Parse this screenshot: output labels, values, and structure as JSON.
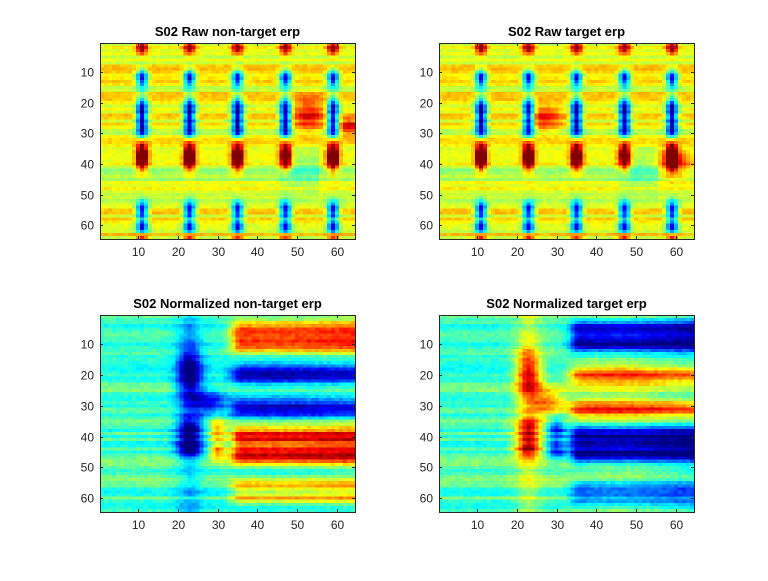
{
  "chart_data": [
    {
      "type": "heatmap",
      "title": "S02 Raw non-target erp",
      "colormap": "jet",
      "x_ticks": [
        10,
        20,
        30,
        40,
        50,
        60
      ],
      "y_ticks": [
        10,
        20,
        30,
        40,
        50,
        60
      ],
      "xlim": [
        0.5,
        64.5
      ],
      "ylim": [
        0.5,
        64.5
      ],
      "y_direction": "reverse",
      "n_cols": 64,
      "n_rows": 64,
      "value_range": [
        0,
        1
      ],
      "pattern": "raw",
      "variant": "nontarget"
    },
    {
      "type": "heatmap",
      "title": "S02 Raw target erp",
      "colormap": "jet",
      "x_ticks": [
        10,
        20,
        30,
        40,
        50,
        60
      ],
      "y_ticks": [
        10,
        20,
        30,
        40,
        50,
        60
      ],
      "xlim": [
        0.5,
        64.5
      ],
      "ylim": [
        0.5,
        64.5
      ],
      "y_direction": "reverse",
      "n_cols": 64,
      "n_rows": 64,
      "value_range": [
        0,
        1
      ],
      "pattern": "raw",
      "variant": "target"
    },
    {
      "type": "heatmap",
      "title": "S02 Normalized non-target erp",
      "colormap": "jet",
      "x_ticks": [
        10,
        20,
        30,
        40,
        50,
        60
      ],
      "y_ticks": [
        10,
        20,
        30,
        40,
        50,
        60
      ],
      "xlim": [
        0.5,
        64.5
      ],
      "ylim": [
        0.5,
        64.5
      ],
      "y_direction": "reverse",
      "n_cols": 64,
      "n_rows": 64,
      "value_range": [
        0,
        1
      ],
      "pattern": "normalized",
      "variant": "nontarget"
    },
    {
      "type": "heatmap",
      "title": "S02 Normalized target erp",
      "colormap": "jet",
      "x_ticks": [
        10,
        20,
        30,
        40,
        50,
        60
      ],
      "y_ticks": [
        10,
        20,
        30,
        40,
        50,
        60
      ],
      "xlim": [
        0.5,
        64.5
      ],
      "ylim": [
        0.5,
        64.5
      ],
      "y_direction": "reverse",
      "n_cols": 64,
      "n_rows": 64,
      "value_range": [
        0,
        1
      ],
      "pattern": "normalized",
      "variant": "target"
    }
  ]
}
